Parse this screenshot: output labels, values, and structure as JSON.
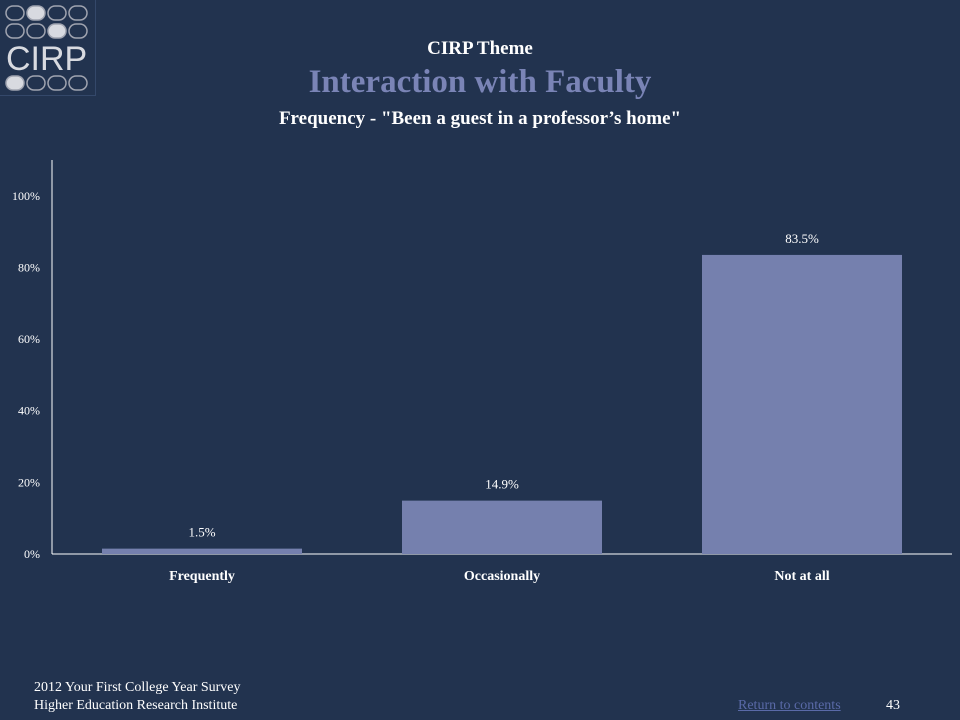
{
  "header": {
    "logo_text": "CIRP",
    "theme_label": "CIRP Theme",
    "title": "Interaction with Faculty",
    "subtitle": "Frequency - \"Been a guest in a professor’s home\""
  },
  "chart_data": {
    "type": "bar",
    "title": "",
    "xlabel": "",
    "ylabel": "",
    "categories": [
      "Frequently",
      "Occasionally",
      "Not at all"
    ],
    "values": [
      1.5,
      14.9,
      83.5
    ],
    "data_labels": [
      "1.5%",
      "14.9%",
      "83.5%"
    ],
    "ylim": [
      0,
      110
    ],
    "yticks": [
      0,
      20,
      40,
      60,
      80,
      100
    ],
    "ytick_labels": [
      "0%",
      "20%",
      "40%",
      "60%",
      "80%",
      "100%"
    ],
    "grid": false,
    "bar_color": "#7580ae"
  },
  "footer": {
    "line1": "2012 Your First College Year Survey",
    "line2": "Higher Education Research Institute",
    "return_link": "Return to contents",
    "page_number": "43"
  },
  "colors": {
    "background": "#22334f",
    "accent": "#7a84b6",
    "logo_gray": "#a0a4b0",
    "logo_light": "#d8dae0"
  }
}
